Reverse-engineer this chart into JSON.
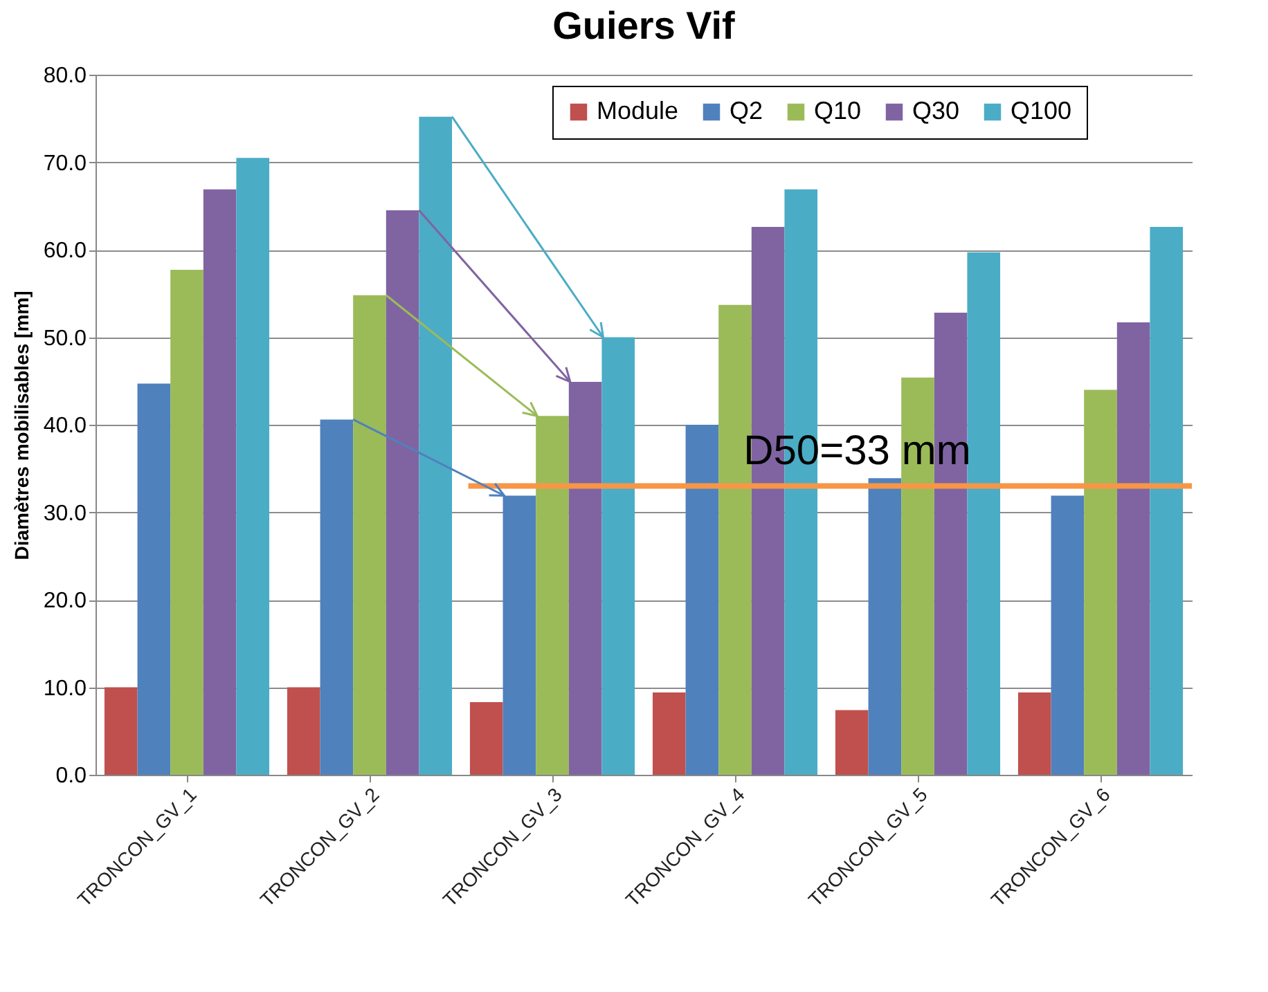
{
  "chart_data": {
    "type": "bar",
    "title": "Guiers Vif",
    "ylabel": "Diamètres mobilisables [mm]",
    "categories": [
      "TRONCON_GV_1",
      "TRONCON_GV_2",
      "TRONCON_GV_3",
      "TRONCON_GV_4",
      "TRONCON_GV_5",
      "TRONCON_GV_6"
    ],
    "series": [
      {
        "name": "Module",
        "color": "#c0504d",
        "values": [
          10.0,
          10.0,
          8.3,
          9.4,
          7.4,
          9.4
        ]
      },
      {
        "name": "Q2",
        "color": "#4f81bd",
        "values": [
          44.7,
          40.6,
          31.9,
          40.0,
          33.9,
          31.9
        ]
      },
      {
        "name": "Q10",
        "color": "#9bbb59",
        "values": [
          57.7,
          54.8,
          41.0,
          53.7,
          45.4,
          44.0
        ]
      },
      {
        "name": "Q30",
        "color": "#8064a2",
        "values": [
          66.9,
          64.5,
          44.9,
          62.6,
          52.8,
          51.7
        ]
      },
      {
        "name": "Q100",
        "color": "#4bacc6",
        "values": [
          70.5,
          75.2,
          50.0,
          66.9,
          59.7,
          62.6
        ]
      }
    ],
    "ylim": [
      0,
      80
    ],
    "yticks": [
      {
        "value": 0,
        "label": "0.0"
      },
      {
        "value": 10,
        "label": "10.0"
      },
      {
        "value": 20,
        "label": "20.0"
      },
      {
        "value": 30,
        "label": "30.0"
      },
      {
        "value": 40,
        "label": "40.0"
      },
      {
        "value": 50,
        "label": "50.0"
      },
      {
        "value": 60,
        "label": "60.0"
      },
      {
        "value": 70,
        "label": "70.0"
      },
      {
        "value": 80,
        "label": "80.0"
      }
    ],
    "ref_lines": [
      {
        "axis": "y",
        "value": 33,
        "label": "D50=33 mm",
        "color": "#f79646"
      }
    ],
    "grid": "y",
    "legend": "top right"
  }
}
